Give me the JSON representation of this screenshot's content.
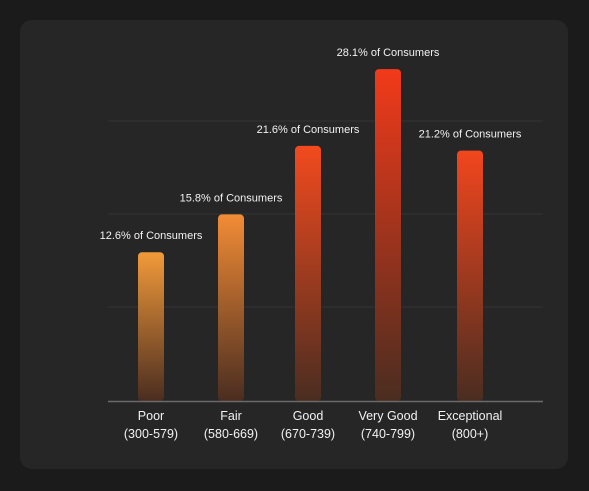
{
  "chart_data": {
    "type": "bar",
    "categories": [
      [
        "Poor",
        "(300-579)"
      ],
      [
        "Fair",
        "(580-669)"
      ],
      [
        "Good",
        "(670-739)"
      ],
      [
        "Very Good",
        "(740-799)"
      ],
      [
        "Exceptional",
        "(800+)"
      ]
    ],
    "series": [
      {
        "values": [
          12.6,
          15.8,
          21.6,
          28.1,
          21.2
        ]
      }
    ],
    "data_labels": [
      "12.6% of Consumers",
      "15.8% of Consumers",
      "21.6% of Consumers",
      "28.1% of Consumers",
      "21.2% of Consumers"
    ],
    "ylim": [
      0,
      30
    ],
    "grid": true,
    "bar_gradients": [
      [
        "#f29a3a",
        "#4a2d20"
      ],
      [
        "#f28c36",
        "#4a2d20"
      ],
      [
        "#f24a1e",
        "#4a2d20"
      ],
      [
        "#f23a1a",
        "#4a2d20"
      ],
      [
        "#f2461e",
        "#4a2d20"
      ]
    ],
    "colors": {
      "grid": "#343434",
      "axis": "#6a6a6a"
    }
  }
}
